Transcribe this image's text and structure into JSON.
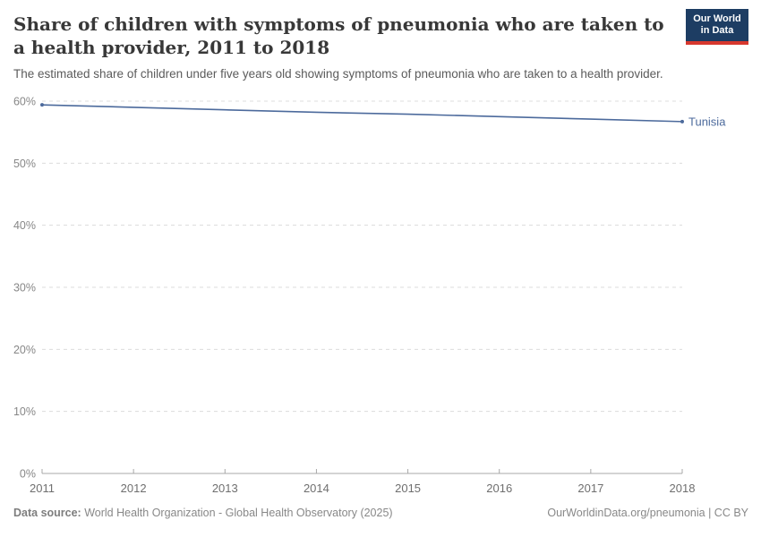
{
  "header": {
    "title": "Share of children with symptoms of pneumonia who are taken to a health provider, 2011 to 2018",
    "subtitle": "The estimated share of children under five years old showing symptoms of pneumonia who are taken to a health provider.",
    "logo": {
      "line1": "Our World",
      "line2": "in Data"
    }
  },
  "chart_data": {
    "type": "line",
    "title": "Share of children with symptoms of pneumonia who are taken to a health provider",
    "x": [
      2011,
      2012,
      2013,
      2014,
      2015,
      2016,
      2017,
      2018
    ],
    "series": [
      {
        "name": "Tunisia",
        "values": [
          59.4,
          59.0,
          58.6,
          58.2,
          57.9,
          57.5,
          57.1,
          56.7
        ],
        "color": "#4c6a9c"
      }
    ],
    "xlabel": "",
    "ylabel": "",
    "ylim": [
      0,
      60
    ],
    "yticks": [
      0,
      10,
      20,
      30,
      40,
      50,
      60
    ],
    "ytick_suffix": "%",
    "grid": "horizontal-dashed",
    "legend": "end-of-line-label"
  },
  "footer": {
    "source_label": "Data source:",
    "source_text": " World Health Organization - Global Health Observatory (2025)",
    "rights": "OurWorldinData.org/pneumonia | CC BY"
  },
  "colors": {
    "line": "#4c6a9c",
    "logo_navy": "#1d3d63",
    "logo_red": "#d7382e",
    "gridline": "#dcdcdc",
    "axis": "#a8a8a8",
    "ytick_label": "#878787",
    "xtick_label": "#6f6f6f",
    "title_text": "#383838",
    "subtitle_text": "#5b5b5b",
    "footer_text": "#888888"
  }
}
